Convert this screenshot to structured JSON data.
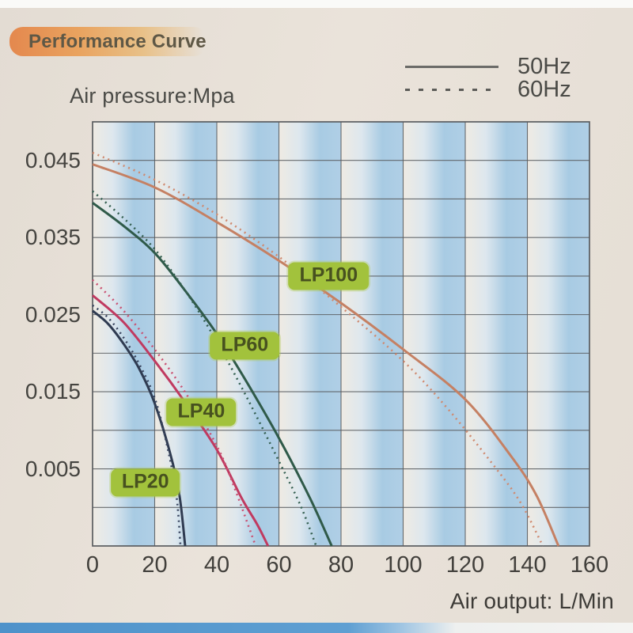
{
  "header": {
    "title": "Performance Curve"
  },
  "chart_data": {
    "type": "line",
    "title": "Performance Curve",
    "xlabel": "Air output: L/Min",
    "ylabel": "Air pressure:Mpa",
    "xlim": [
      0,
      160
    ],
    "ylim": [
      -0.005,
      0.05
    ],
    "x_ticks": [
      0,
      20,
      40,
      60,
      80,
      100,
      120,
      140,
      160
    ],
    "y_ticks": [
      0.045,
      0.035,
      0.025,
      0.015,
      0.005
    ],
    "y_tick_labels": [
      "0.045",
      "0.035",
      "0.025",
      "0.015",
      "0.005"
    ],
    "grid": true,
    "x_grid_step": 20,
    "y_grid_step": 0.005,
    "legend_position": "top-right",
    "legend": [
      {
        "label": "50Hz",
        "style": "solid"
      },
      {
        "label": "60Hz",
        "style": "dotted"
      }
    ],
    "series": [
      {
        "name": "LP100",
        "freq": "50Hz",
        "style": "solid",
        "color": "#c58063",
        "points": [
          [
            0,
            0.0445
          ],
          [
            20,
            0.0415
          ],
          [
            40,
            0.037
          ],
          [
            60,
            0.032
          ],
          [
            80,
            0.0265
          ],
          [
            100,
            0.0205
          ],
          [
            120,
            0.014
          ],
          [
            135,
            0.0065
          ],
          [
            143,
            0.0015
          ],
          [
            150,
            -0.005
          ]
        ]
      },
      {
        "name": "LP100",
        "freq": "60Hz",
        "style": "dotted",
        "color": "#cf8a70",
        "points": [
          [
            0,
            0.046
          ],
          [
            20,
            0.0425
          ],
          [
            40,
            0.038
          ],
          [
            60,
            0.0325
          ],
          [
            80,
            0.026
          ],
          [
            100,
            0.019
          ],
          [
            115,
            0.0125
          ],
          [
            130,
            0.005
          ],
          [
            138,
            0.0005
          ],
          [
            145,
            -0.005
          ]
        ]
      },
      {
        "name": "LP60",
        "freq": "50Hz",
        "style": "solid",
        "color": "#2f5a49",
        "points": [
          [
            0,
            0.0395
          ],
          [
            10,
            0.0365
          ],
          [
            20,
            0.033
          ],
          [
            30,
            0.028
          ],
          [
            40,
            0.0225
          ],
          [
            50,
            0.016
          ],
          [
            60,
            0.009
          ],
          [
            70,
            0.0012
          ],
          [
            77,
            -0.005
          ]
        ]
      },
      {
        "name": "LP60",
        "freq": "60Hz",
        "style": "dotted",
        "color": "#356052",
        "points": [
          [
            0,
            0.041
          ],
          [
            10,
            0.0375
          ],
          [
            20,
            0.0335
          ],
          [
            30,
            0.028
          ],
          [
            40,
            0.0215
          ],
          [
            50,
            0.014
          ],
          [
            60,
            0.006
          ],
          [
            67,
            0.0002
          ],
          [
            72,
            -0.005
          ]
        ]
      },
      {
        "name": "LP40",
        "freq": "50Hz",
        "style": "solid",
        "color": "#c03a60",
        "points": [
          [
            0,
            0.0275
          ],
          [
            10,
            0.024
          ],
          [
            20,
            0.019
          ],
          [
            30,
            0.0135
          ],
          [
            40,
            0.0075
          ],
          [
            48,
            0.0012
          ],
          [
            53,
            -0.0022
          ],
          [
            56.5,
            -0.005
          ]
        ]
      },
      {
        "name": "LP40",
        "freq": "60Hz",
        "style": "dotted",
        "color": "#c95273",
        "points": [
          [
            0,
            0.0295
          ],
          [
            10,
            0.0255
          ],
          [
            20,
            0.0205
          ],
          [
            30,
            0.0148
          ],
          [
            40,
            0.008
          ],
          [
            46,
            0.0022
          ],
          [
            52.5,
            -0.005
          ]
        ]
      },
      {
        "name": "LP20",
        "freq": "50Hz",
        "style": "solid",
        "color": "#2f3b51",
        "points": [
          [
            0,
            0.0255
          ],
          [
            5,
            0.0238
          ],
          [
            10,
            0.0212
          ],
          [
            15,
            0.018
          ],
          [
            20,
            0.0135
          ],
          [
            25,
            0.007
          ],
          [
            28,
            0.0015
          ],
          [
            29.8,
            -0.005
          ]
        ]
      },
      {
        "name": "LP20",
        "freq": "60Hz",
        "style": "dotted",
        "color": "#3a4660",
        "points": [
          [
            0,
            0.0262
          ],
          [
            5,
            0.0246
          ],
          [
            10,
            0.022
          ],
          [
            15,
            0.0186
          ],
          [
            20,
            0.0142
          ],
          [
            24,
            0.008
          ],
          [
            27,
            0.0015
          ],
          [
            28.3,
            -0.005
          ]
        ]
      }
    ],
    "annotations": [
      {
        "text": "LP100",
        "x": 76,
        "y": 0.03
      },
      {
        "text": "LP60",
        "x": 49,
        "y": 0.021
      },
      {
        "text": "LP40",
        "x": 35,
        "y": 0.0123
      },
      {
        "text": "LP20",
        "x": 17,
        "y": 0.0032
      }
    ]
  },
  "colors": {
    "background": "#e8e1d8",
    "grid": "#5a5d60",
    "stripe_blue": "#a8cbe3",
    "stripe_cream": "#efebe3",
    "badge_background": "#a2c23c",
    "badge_text": "#47511f",
    "title_badge_orange": "#e4884e",
    "axis_text": "#454440",
    "bottom_edge_blue": "#4e92ca"
  }
}
